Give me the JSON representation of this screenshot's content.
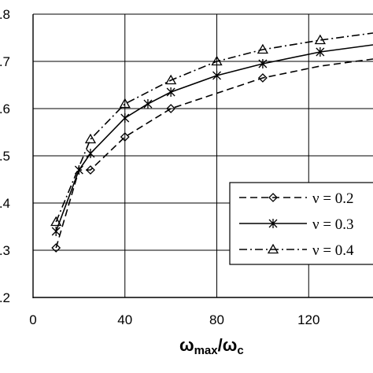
{
  "chart_data": {
    "type": "line",
    "title": "",
    "xlabel": "ωmax/ωc",
    "xlabel_parts": {
      "main": "ω",
      "sub1": "max",
      "sep": "/",
      "main2": "ω",
      "sub2": "c"
    },
    "ylabel": "",
    "xlim": [
      0,
      148
    ],
    "ylim": [
      0.2,
      0.8
    ],
    "xticks": [
      0,
      40,
      80,
      120
    ],
    "xtick_labels": [
      "0",
      "40",
      "80",
      "120"
    ],
    "yticks": [
      0.2,
      0.3,
      0.4,
      0.5,
      0.6,
      0.7,
      0.8
    ],
    "ytick_labels": [
      ".2",
      ".3",
      ".4",
      ".5",
      ".6",
      ".7",
      ".8"
    ],
    "grid": true,
    "legend_position": "right-middle",
    "series": [
      {
        "name": "ν = 0.2",
        "style": "dashed",
        "marker": "diamond",
        "x": [
          10,
          20,
          25,
          40,
          60,
          100,
          125,
          148
        ],
        "y": [
          0.305,
          0.47,
          0.47,
          0.54,
          0.6,
          0.665,
          0.69,
          0.705
        ],
        "marker_x": [
          10,
          25,
          40,
          60,
          100
        ],
        "marker_y": [
          0.305,
          0.47,
          0.54,
          0.6,
          0.665
        ]
      },
      {
        "name": "ν = 0.3",
        "style": "solid",
        "marker": "star",
        "x": [
          10,
          20,
          25,
          40,
          50,
          60,
          80,
          100,
          125,
          148
        ],
        "y": [
          0.34,
          0.47,
          0.505,
          0.58,
          0.61,
          0.635,
          0.67,
          0.695,
          0.72,
          0.735
        ],
        "marker_x": [
          10,
          20,
          25,
          40,
          50,
          60,
          80,
          100,
          125
        ],
        "marker_y": [
          0.34,
          0.47,
          0.505,
          0.58,
          0.61,
          0.635,
          0.67,
          0.695,
          0.72
        ]
      },
      {
        "name": "ν = 0.4",
        "style": "dashdot",
        "marker": "triangle",
        "x": [
          10,
          25,
          40,
          60,
          80,
          100,
          125,
          148
        ],
        "y": [
          0.36,
          0.535,
          0.61,
          0.66,
          0.7,
          0.725,
          0.745,
          0.76
        ],
        "marker_x": [
          10,
          25,
          40,
          60,
          80,
          100,
          125
        ],
        "marker_y": [
          0.36,
          0.535,
          0.61,
          0.66,
          0.7,
          0.725,
          0.745
        ]
      }
    ]
  }
}
